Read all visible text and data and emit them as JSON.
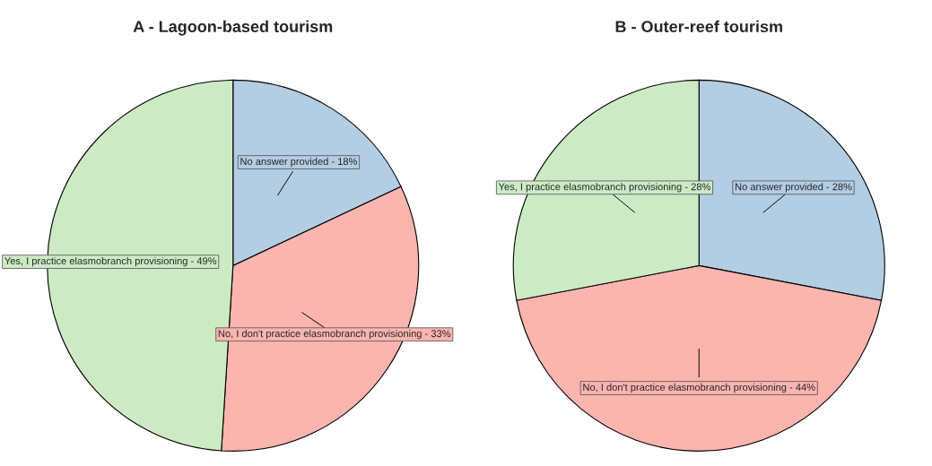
{
  "chart_data": [
    {
      "type": "pie",
      "title": "A - Lagoon-based tourism",
      "categories": [
        "No answer provided",
        "No, I don't practice elasmobranch provisioning",
        "Yes, I practice elasmobranch provisioning"
      ],
      "values": [
        18,
        33,
        49
      ],
      "value_labels": [
        "18%",
        "33%",
        "49%"
      ],
      "colors": [
        "#b3cde3",
        "#fbb4ae",
        "#ccebc5"
      ],
      "legend": false
    },
    {
      "type": "pie",
      "title": "B - Outer-reef tourism",
      "categories": [
        "No answer provided",
        "No, I don't practice elasmobranch provisioning",
        "Yes, I practice elasmobranch provisioning"
      ],
      "values": [
        28,
        44,
        28
      ],
      "value_labels": [
        "28%",
        "44%",
        "28%"
      ],
      "colors": [
        "#b3cde3",
        "#fbb4ae",
        "#ccebc5"
      ],
      "legend": false
    }
  ]
}
